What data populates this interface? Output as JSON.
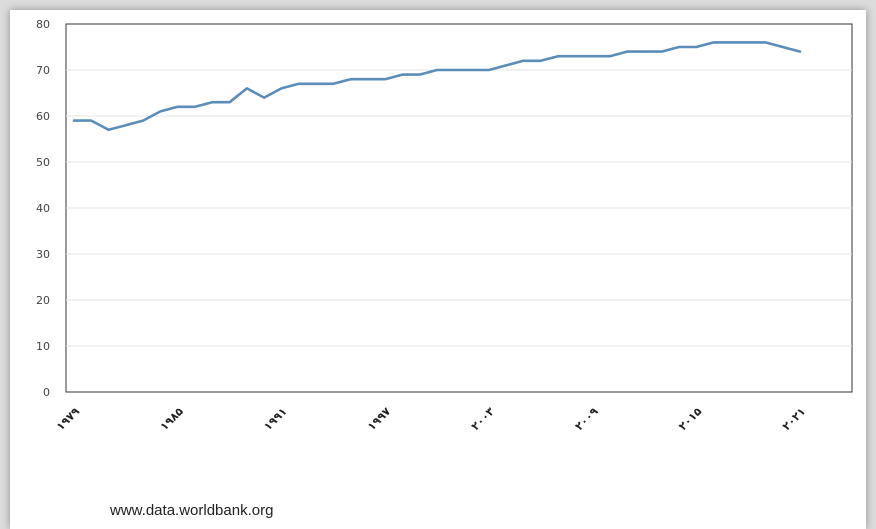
{
  "chart_data": {
    "type": "line",
    "title": "",
    "xlabel": "",
    "ylabel": "",
    "x_tick_labels": [
      "۱۹۷۹",
      "۱۹۸۵",
      "۱۹۹۱",
      "۱۹۹۷",
      "۲۰۰۳",
      "۲۰۰۹",
      "۲۰۱۵",
      "۲۰۲۱"
    ],
    "y_ticks": [
      0,
      10,
      20,
      30,
      40,
      50,
      60,
      70,
      80
    ],
    "ylim": [
      0,
      80
    ],
    "xlim": [
      1979,
      2021
    ],
    "grid": true,
    "line_color": "#5b8db8",
    "series": [
      {
        "x": [
          1979,
          1980,
          1981,
          1982,
          1983,
          1984,
          1985,
          1986,
          1987,
          1988,
          1989,
          1990,
          1991,
          1992,
          1993,
          1994,
          1995,
          1996,
          1997,
          1998,
          1999,
          2000,
          2001,
          2002,
          2003,
          2004,
          2005,
          2006,
          2007,
          2008,
          2009,
          2010,
          2011,
          2012,
          2013,
          2014,
          2015,
          2016,
          2017,
          2018,
          2019,
          2020,
          2021
        ],
        "values": [
          59,
          59,
          57,
          58,
          59,
          61,
          62,
          62,
          63,
          63,
          66,
          64,
          66,
          67,
          67,
          67,
          68,
          68,
          68,
          69,
          69,
          70,
          70,
          70,
          70,
          71,
          72,
          72,
          73,
          73,
          73,
          73,
          74,
          74,
          74,
          75,
          75,
          76,
          76,
          76,
          76,
          75,
          74
        ]
      }
    ]
  },
  "source_text": "www.data.worldbank.org"
}
